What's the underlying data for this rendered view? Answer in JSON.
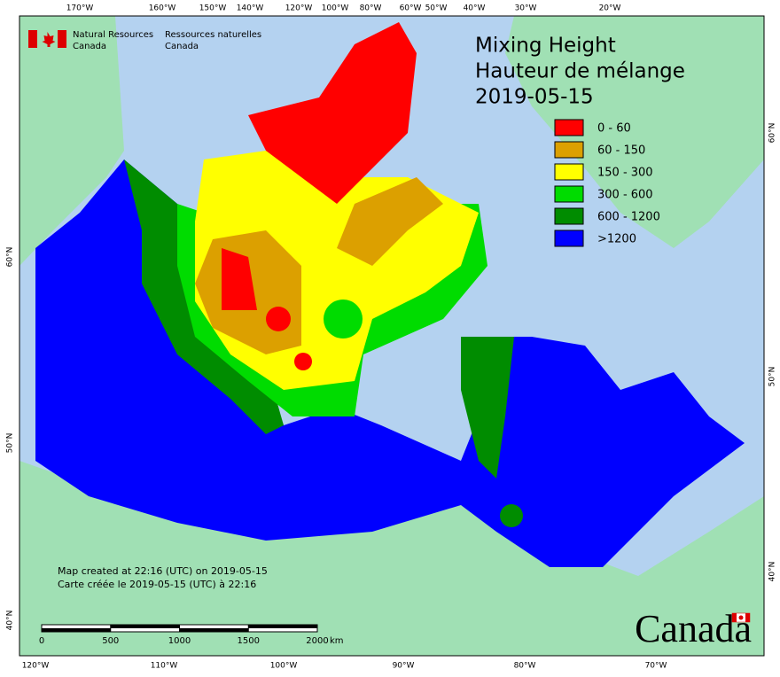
{
  "agency": {
    "en": [
      "Natural Resources",
      "Canada"
    ],
    "fr": [
      "Ressources naturelles",
      "Canada"
    ]
  },
  "title": [
    "Mixing Height",
    "Hauteur de mélange",
    "2019-05-15"
  ],
  "legend": [
    {
      "label": "0 - 60",
      "color": "#ff0000"
    },
    {
      "label": "60 - 150",
      "color": "#dca000"
    },
    {
      "label": "150 - 300",
      "color": "#ffff00"
    },
    {
      "label": "300 - 600",
      "color": "#00dc00"
    },
    {
      "label": "600 - 1200",
      "color": "#008c00"
    },
    {
      "label": ">1200",
      "color": "#0000ff"
    }
  ],
  "top_labels": [
    "170°W",
    "160°W",
    "150°W",
    "140°W",
    "120°W",
    "100°W",
    "80°W",
    "60°W",
    "50°W",
    "40°W",
    "30°W",
    "20°W"
  ],
  "bottom_labels": [
    "120°W",
    "110°W",
    "100°W",
    "90°W",
    "80°W",
    "70°W"
  ],
  "left_labels": [
    "60°N",
    "50°N",
    "40°N"
  ],
  "right_labels": [
    "60°N",
    "50°N",
    "40°N"
  ],
  "notes": [
    "Map created at 22:16 (UTC) on 2019-05-15",
    "Carte créée le 2019-05-15 (UTC) à 22:16"
  ],
  "scale_bar": {
    "ticks": [
      0,
      500,
      1000,
      1500,
      2000
    ],
    "unit": "km"
  },
  "wordmark": "Canada"
}
